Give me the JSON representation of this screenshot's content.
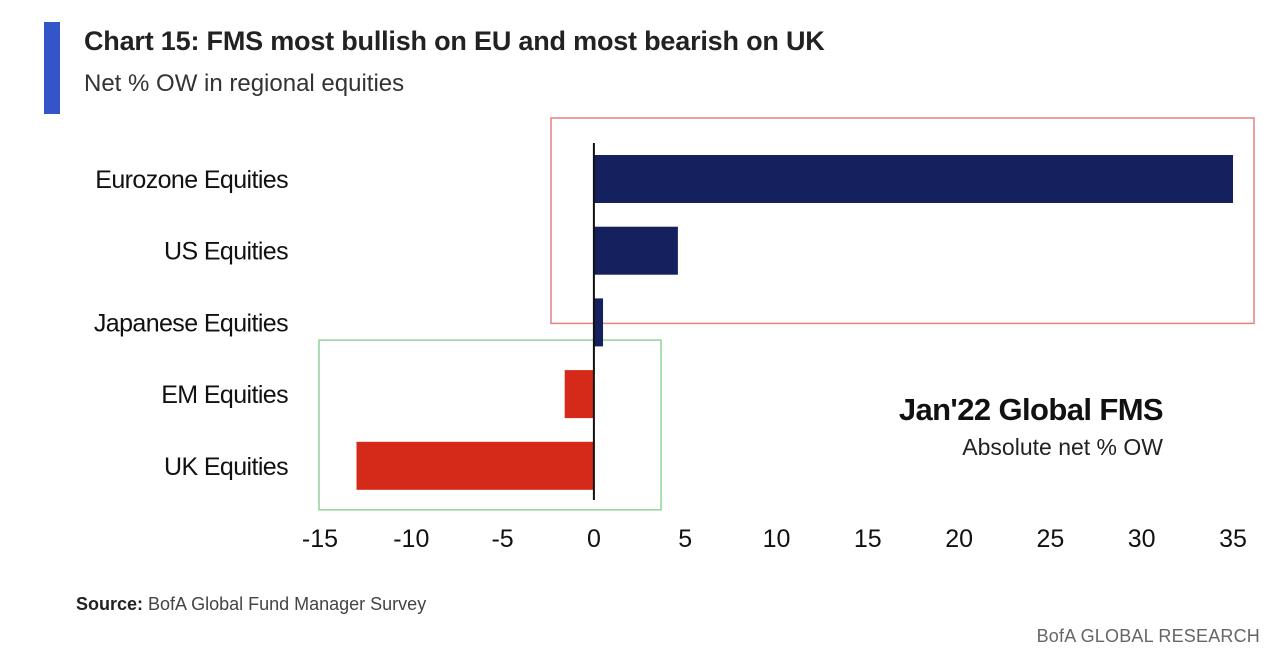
{
  "header": {
    "title": "Chart 15: FMS most bullish on EU and most bearish on UK",
    "subtitle": "Net % OW in regional equities"
  },
  "colors": {
    "accent": "#3355c8",
    "positive_bar": "#15215f",
    "negative_bar": "#d52a19",
    "highlight_positive_box": "#e88080",
    "highlight_negative_box": "#8fd49a"
  },
  "annotation": {
    "title": "Jan'22 Global FMS",
    "subtitle": "Absolute net % OW"
  },
  "chart_data": {
    "type": "bar",
    "orientation": "horizontal",
    "categories": [
      "Eurozone Equities",
      "US Equities",
      "Japanese Equities",
      "EM Equities",
      "UK Equities"
    ],
    "values": [
      35,
      4.6,
      0.5,
      -1.6,
      -13
    ],
    "xlim": [
      -15,
      35
    ],
    "xticks": [
      -15,
      -10,
      -5,
      0,
      5,
      10,
      15,
      20,
      25,
      30,
      35
    ],
    "grid": false,
    "legend": "none"
  },
  "footer": {
    "source_label": "Source:",
    "source_text": " BofA Global Fund Manager Survey",
    "brand": "BofA GLOBAL RESEARCH"
  }
}
